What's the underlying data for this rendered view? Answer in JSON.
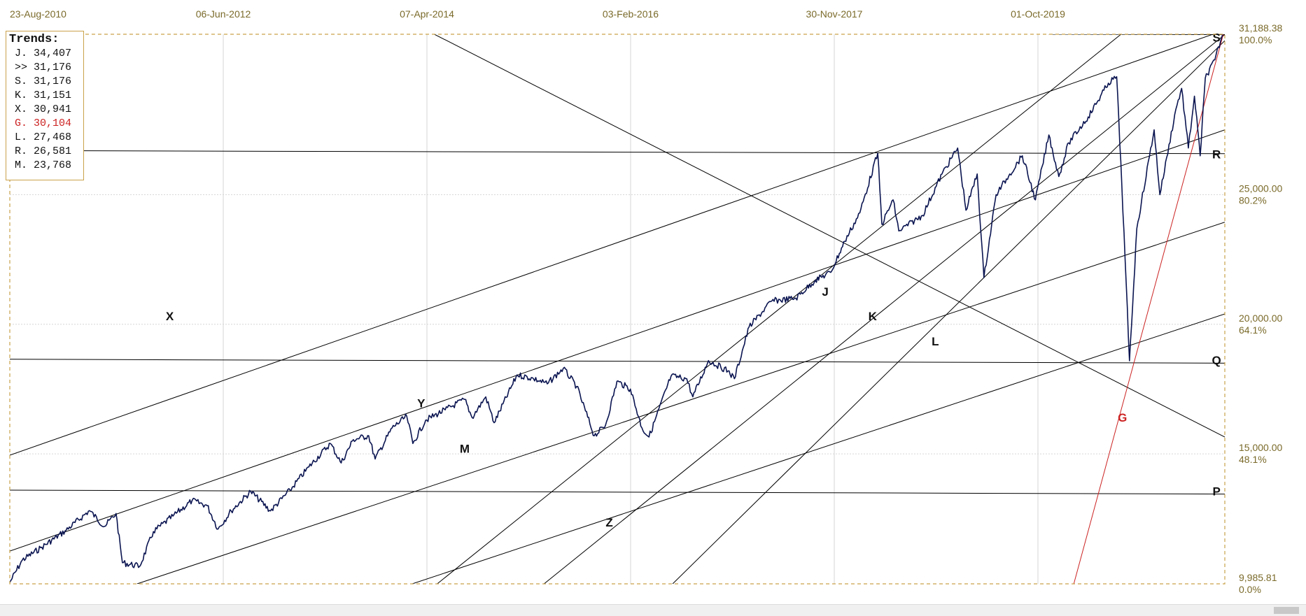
{
  "chart_data": {
    "type": "line",
    "x_tick_labels": [
      "23-Aug-2010",
      "06-Jun-2012",
      "07-Apr-2014",
      "03-Feb-2016",
      "30-Nov-2017",
      "01-Oct-2019"
    ],
    "y_axis": {
      "ticks": [
        {
          "value": "31,188.38",
          "pct": "100.0%",
          "num": 31188.38
        },
        {
          "value": "25,000.00",
          "pct": "80.2%",
          "num": 25000
        },
        {
          "value": "20,000.00",
          "pct": "64.1%",
          "num": 20000
        },
        {
          "value": "15,000.00",
          "pct": "48.1%",
          "num": 15000
        },
        {
          "value": "9,985.81",
          "pct": "0.0%",
          "num": 9985.81
        }
      ],
      "min": 9985.81,
      "max": 31188.38
    },
    "x_range": [
      "2010-08-23",
      "2021-01-15"
    ],
    "grid": true,
    "series": [
      {
        "color": "#0a1450",
        "x": [
          "2010-08-23",
          "2010-10-01",
          "2010-12-01",
          "2011-02-15",
          "2011-04-29",
          "2011-06-15",
          "2011-07-21",
          "2011-08-10",
          "2011-10-03",
          "2011-11-15",
          "2012-01-15",
          "2012-03-15",
          "2012-05-01",
          "2012-06-04",
          "2012-07-15",
          "2012-09-14",
          "2012-11-15",
          "2013-01-15",
          "2013-03-15",
          "2013-05-21",
          "2013-06-24",
          "2013-08-01",
          "2013-09-18",
          "2013-10-08",
          "2013-11-30",
          "2014-01-15",
          "2014-02-03",
          "2014-03-15",
          "2014-05-15",
          "2014-07-15",
          "2014-08-07",
          "2014-09-19",
          "2014-10-15",
          "2014-12-26",
          "2015-02-15",
          "2015-03-30",
          "2015-05-19",
          "2015-06-30",
          "2015-08-24",
          "2015-09-28",
          "2015-11-03",
          "2015-12-15",
          "2016-01-20",
          "2016-02-11",
          "2016-04-20",
          "2016-06-08",
          "2016-06-27",
          "2016-08-15",
          "2016-10-15",
          "2016-11-04",
          "2016-12-20",
          "2017-03-01",
          "2017-05-15",
          "2017-07-15",
          "2017-09-01",
          "2017-10-15",
          "2017-12-01",
          "2018-01-26",
          "2018-02-08",
          "2018-03-15",
          "2018-04-02",
          "2018-06-15",
          "2018-08-15",
          "2018-10-03",
          "2018-10-29",
          "2018-12-03",
          "2018-12-24",
          "2019-01-31",
          "2019-03-15",
          "2019-04-23",
          "2019-06-03",
          "2019-07-15",
          "2019-08-15",
          "2019-09-15",
          "2019-11-15",
          "2020-01-17",
          "2020-02-12",
          "2020-02-28",
          "2020-03-23",
          "2020-04-15",
          "2020-06-08",
          "2020-06-26",
          "2020-08-15",
          "2020-09-02",
          "2020-09-23",
          "2020-10-12",
          "2020-10-30",
          "2020-11-15",
          "2020-12-15",
          "2021-01-08"
        ],
        "y": [
          10040,
          10900,
          11400,
          12050,
          12810,
          12200,
          12700,
          10800,
          10660,
          12000,
          12600,
          13200,
          13000,
          12100,
          12800,
          13550,
          12800,
          13600,
          14500,
          15400,
          14650,
          15550,
          15700,
          14800,
          16000,
          16450,
          15400,
          16300,
          16700,
          17100,
          16400,
          17200,
          16200,
          18050,
          17900,
          17700,
          18300,
          17600,
          15700,
          16100,
          17800,
          17500,
          16000,
          15650,
          18000,
          17900,
          17200,
          18600,
          18200,
          17900,
          19900,
          20900,
          21000,
          21700,
          22000,
          23200,
          24300,
          26600,
          23860,
          24800,
          23600,
          24200,
          25800,
          26800,
          24400,
          25800,
          21800,
          25000,
          25800,
          26500,
          24800,
          27300,
          25700,
          27000,
          28000,
          29300,
          29550,
          25400,
          18590,
          23700,
          27500,
          25000,
          28300,
          29100,
          26800,
          28800,
          26500,
          29500,
          30200,
          31180
        ]
      }
    ],
    "trend_lines": [
      {
        "name": "X",
        "color": "#000000",
        "x": [
          "2010-08-23",
          "2021-01-15"
        ],
        "y": [
          14950,
          31350
        ]
      },
      {
        "name": "Y",
        "color": "#000000",
        "x": [
          "2010-08-23",
          "2021-01-15"
        ],
        "y": [
          11250,
          27500
        ]
      },
      {
        "name": "M",
        "color": "#000000",
        "x": [
          "2011-09-25",
          "2021-01-15"
        ],
        "y": [
          9985.81,
          23940
        ]
      },
      {
        "name": "Z",
        "color": "#000000",
        "x": [
          "2014-02-01",
          "2021-01-15"
        ],
        "y": [
          9985.81,
          20400
        ]
      },
      {
        "name": "J",
        "color": "#000000",
        "x": [
          "2014-04-20",
          "2021-01-15"
        ],
        "y": [
          9985.81,
          34407
        ]
      },
      {
        "name": "K",
        "color": "#000000",
        "x": [
          "2015-03-20",
          "2021-01-15"
        ],
        "y": [
          9985.81,
          31176
        ]
      },
      {
        "name": "L",
        "color": "#000000",
        "x": [
          "2016-04-25",
          "2021-01-15"
        ],
        "y": [
          9985.81,
          30941
        ]
      },
      {
        "name": "S",
        "color": "#000000",
        "x": [
          "2019-07-15",
          "2021-01-15"
        ],
        "y": [
          31188.38,
          31176
        ]
      },
      {
        "name": "R",
        "color": "#000000",
        "x": [
          "2010-08-23",
          "2021-01-15"
        ],
        "y": [
          26700,
          26581
        ]
      },
      {
        "name": "Q",
        "color": "#000000",
        "x": [
          "2010-08-23",
          "2021-01-15"
        ],
        "y": [
          18650,
          18500
        ]
      },
      {
        "name": "P",
        "color": "#000000",
        "x": [
          "2010-08-23",
          "2021-01-15"
        ],
        "y": [
          13600,
          13450
        ]
      },
      {
        "name": "",
        "color": "#000000",
        "x": [
          "2014-04-11",
          "2021-01-15"
        ],
        "y": [
          31188.38,
          15650
        ]
      },
      {
        "name": "G",
        "color": "#cc2222",
        "x": [
          "2019-10-01",
          "2021-01-15"
        ],
        "y": [
          9985.81,
          31400
        ]
      }
    ],
    "trend_labels": [
      {
        "text": "X",
        "color": "#111111",
        "x": "2012-01-05",
        "y": 20150
      },
      {
        "text": "Y",
        "color": "#111111",
        "x": "2014-03-01",
        "y": 16800
      },
      {
        "text": "M",
        "color": "#111111",
        "x": "2014-07-15",
        "y": 15050
      },
      {
        "text": "Z",
        "color": "#111111",
        "x": "2015-10-10",
        "y": 12200
      },
      {
        "text": "J",
        "color": "#111111",
        "x": "2017-08-15",
        "y": 21100
      },
      {
        "text": "K",
        "color": "#111111",
        "x": "2018-01-10",
        "y": 20150
      },
      {
        "text": "L",
        "color": "#111111",
        "x": "2018-07-25",
        "y": 19180
      },
      {
        "text": "G",
        "color": "#cc2222",
        "x": "2020-03-01",
        "y": 16250
      },
      {
        "text": "S",
        "color": "#111111",
        "x": "2020-12-20",
        "y": 30900
      },
      {
        "text": "R",
        "color": "#111111",
        "x": "2020-12-20",
        "y": 26400
      },
      {
        "text": "Q",
        "color": "#111111",
        "x": "2020-12-20",
        "y": 18450
      },
      {
        "text": "P",
        "color": "#111111",
        "x": "2020-12-20",
        "y": 13400
      }
    ]
  },
  "legend": {
    "title": "Trends:",
    "items": [
      {
        "label": "J. 34,407",
        "color": "#111111"
      },
      {
        "label": ">> 31,176",
        "color": "#111111"
      },
      {
        "label": "S. 31,176",
        "color": "#111111"
      },
      {
        "label": "K. 31,151",
        "color": "#111111"
      },
      {
        "label": "X. 30,941",
        "color": "#111111"
      },
      {
        "label": "G. 30,104",
        "color": "#cc2222"
      },
      {
        "label": "L. 27,468",
        "color": "#111111"
      },
      {
        "label": "R. 26,581",
        "color": "#111111"
      },
      {
        "label": "M. 23,768",
        "color": "#111111"
      }
    ]
  },
  "colors": {
    "frame": "#c9a24a",
    "grid": "#d6d6d6",
    "axis_text": "#7a6a2a"
  }
}
